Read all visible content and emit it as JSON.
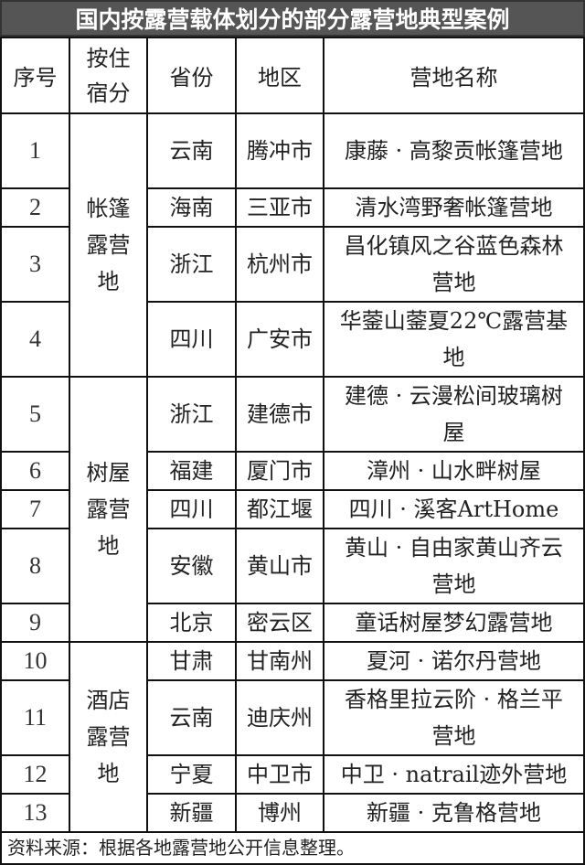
{
  "title": "国内按露营载体划分的部分露营地典型案例",
  "headers": [
    "序号",
    "按住宿分",
    "省份",
    "地区",
    "营地名称"
  ],
  "groups": [
    "帐篷露营地",
    "树屋露营地",
    "酒店露营地"
  ],
  "rows": [
    {
      "no": "1",
      "province": "云南",
      "area": "腾冲市",
      "name": "康藤 · 高黎贡帐篷营地"
    },
    {
      "no": "2",
      "province": "海南",
      "area": "三亚市",
      "name": "清水湾野奢帐篷营地"
    },
    {
      "no": "3",
      "province": "浙江",
      "area": "杭州市",
      "name": "昌化镇风之谷蓝色森林营地"
    },
    {
      "no": "4",
      "province": "四川",
      "area": "广安市",
      "name": "华蓥山蓥夏22℃露营基地"
    },
    {
      "no": "5",
      "province": "浙江",
      "area": "建德市",
      "name": "建德 · 云漫松间玻璃树屋"
    },
    {
      "no": "6",
      "province": "福建",
      "area": "厦门市",
      "name": "漳州 · 山水畔树屋"
    },
    {
      "no": "7",
      "province": "四川",
      "area": "都江堰",
      "name": "四川 · 溪客ArtHome"
    },
    {
      "no": "8",
      "province": "安徽",
      "area": "黄山市",
      "name": "黄山 · 自由家黄山齐云营地"
    },
    {
      "no": "9",
      "province": "北京",
      "area": "密云区",
      "name": "童话树屋梦幻露营地"
    },
    {
      "no": "10",
      "province": "甘肃",
      "area": "甘南州",
      "name": "夏河 · 诺尔丹营地"
    },
    {
      "no": "11",
      "province": "云南",
      "area": "迪庆州",
      "name": "香格里拉云阶 · 格兰平营地"
    },
    {
      "no": "12",
      "province": "宁夏",
      "area": "中卫市",
      "name": "中卫 · natrail迹外营地"
    },
    {
      "no": "13",
      "province": "新疆",
      "area": "博州",
      "name": "新疆 · 克鲁格营地"
    }
  ],
  "footer": "资料来源：根据各地露营地公开信息整理。"
}
